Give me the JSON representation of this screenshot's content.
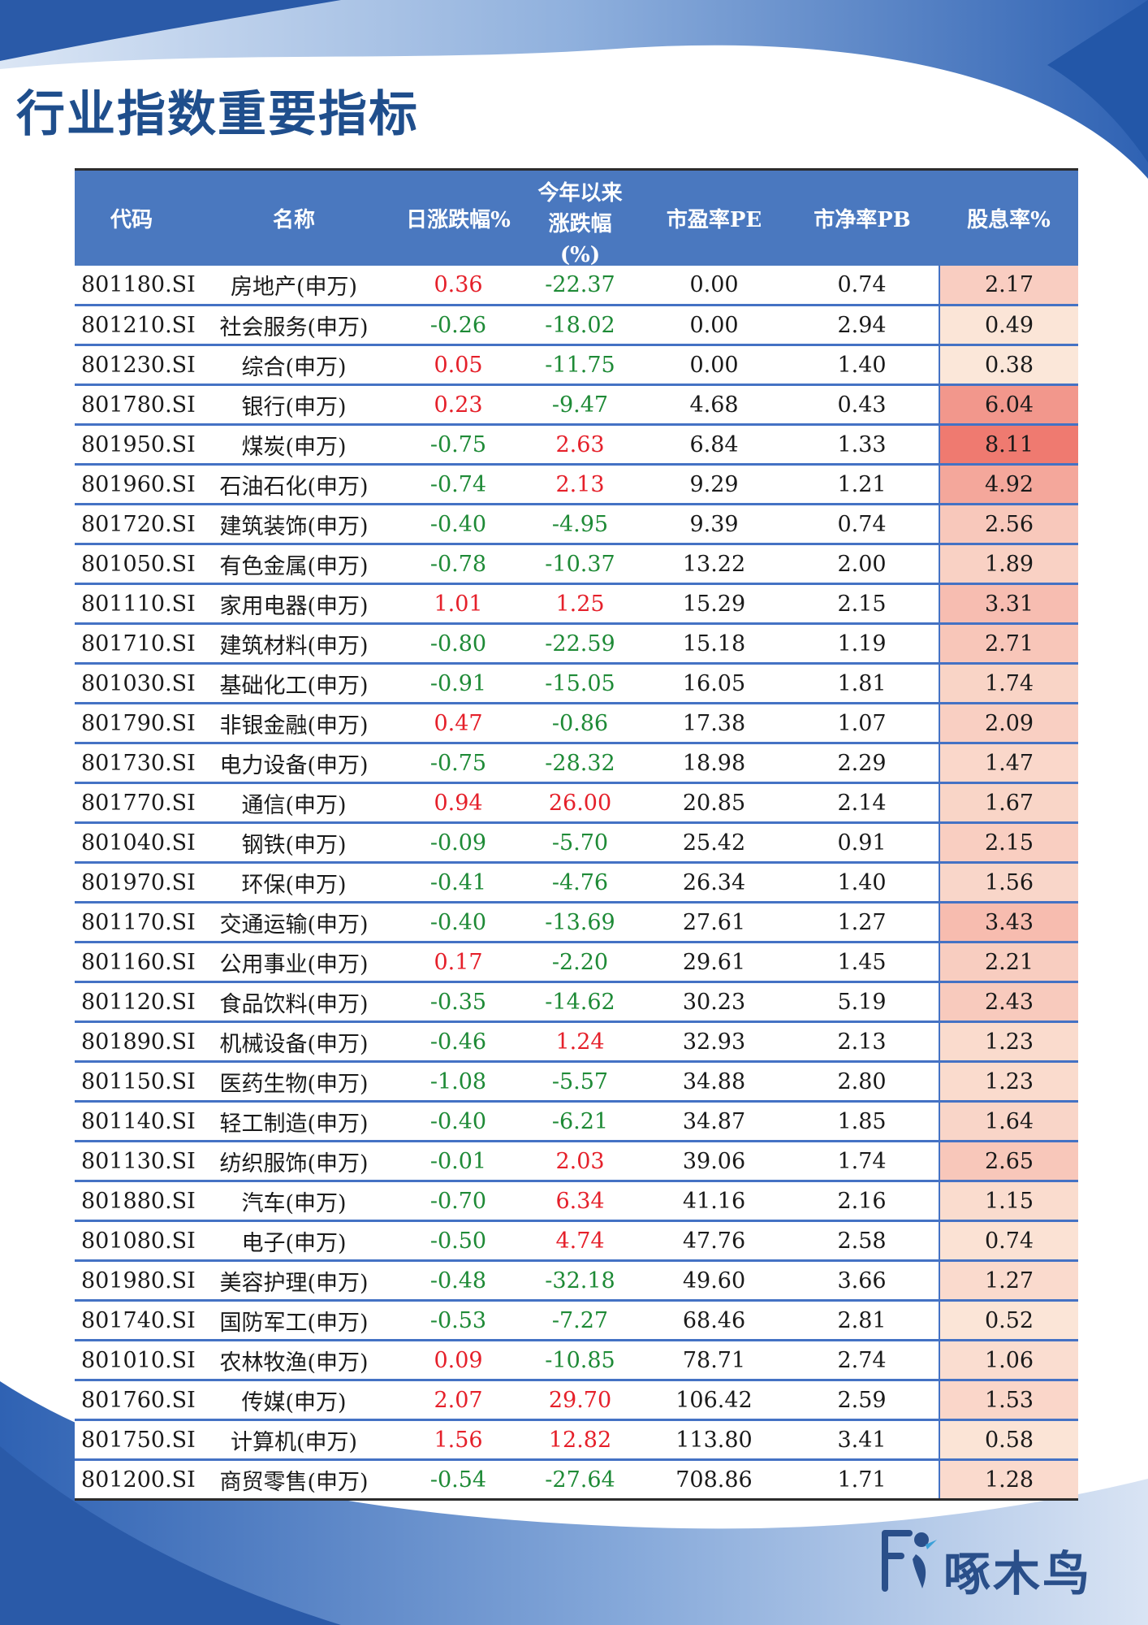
{
  "page": {
    "title": "行业指数重要指标"
  },
  "colors": {
    "header_bg": "#4a78bf",
    "rise": "#e5202a",
    "fall": "#1e8a36",
    "row_rule": "#4472c4",
    "brand": "#2a4f8a"
  },
  "table": {
    "headers": {
      "code": "代码",
      "name": "名称",
      "daily": "日涨跌幅%",
      "ytd_line1": "今年以来",
      "ytd_line2": "涨跌幅",
      "ytd_line3": "(%)",
      "pe": "市盈率PE",
      "pb": "市净率PB",
      "dividend": "股息率%"
    },
    "rows": [
      {
        "code": "801180.SI",
        "name": "房地产(申万)",
        "daily": "0.36",
        "ytd": "-22.37",
        "pe": "0.00",
        "pb": "0.74",
        "dividend": "2.17",
        "dy": 2.17
      },
      {
        "code": "801210.SI",
        "name": "社会服务(申万)",
        "daily": "-0.26",
        "ytd": "-18.02",
        "pe": "0.00",
        "pb": "2.94",
        "dividend": "0.49",
        "dy": 0.49
      },
      {
        "code": "801230.SI",
        "name": "综合(申万)",
        "daily": "0.05",
        "ytd": "-11.75",
        "pe": "0.00",
        "pb": "1.40",
        "dividend": "0.38",
        "dy": 0.38
      },
      {
        "code": "801780.SI",
        "name": "银行(申万)",
        "daily": "0.23",
        "ytd": "-9.47",
        "pe": "4.68",
        "pb": "0.43",
        "dividend": "6.04",
        "dy": 6.04
      },
      {
        "code": "801950.SI",
        "name": "煤炭(申万)",
        "daily": "-0.75",
        "ytd": "2.63",
        "pe": "6.84",
        "pb": "1.33",
        "dividend": "8.11",
        "dy": 8.11
      },
      {
        "code": "801960.SI",
        "name": "石油石化(申万)",
        "daily": "-0.74",
        "ytd": "2.13",
        "pe": "9.29",
        "pb": "1.21",
        "dividend": "4.92",
        "dy": 4.92
      },
      {
        "code": "801720.SI",
        "name": "建筑装饰(申万)",
        "daily": "-0.40",
        "ytd": "-4.95",
        "pe": "9.39",
        "pb": "0.74",
        "dividend": "2.56",
        "dy": 2.56
      },
      {
        "code": "801050.SI",
        "name": "有色金属(申万)",
        "daily": "-0.78",
        "ytd": "-10.37",
        "pe": "13.22",
        "pb": "2.00",
        "dividend": "1.89",
        "dy": 1.89
      },
      {
        "code": "801110.SI",
        "name": "家用电器(申万)",
        "daily": "1.01",
        "ytd": "1.25",
        "pe": "15.29",
        "pb": "2.15",
        "dividend": "3.31",
        "dy": 3.31
      },
      {
        "code": "801710.SI",
        "name": "建筑材料(申万)",
        "daily": "-0.80",
        "ytd": "-22.59",
        "pe": "15.18",
        "pb": "1.19",
        "dividend": "2.71",
        "dy": 2.71
      },
      {
        "code": "801030.SI",
        "name": "基础化工(申万)",
        "daily": "-0.91",
        "ytd": "-15.05",
        "pe": "16.05",
        "pb": "1.81",
        "dividend": "1.74",
        "dy": 1.74
      },
      {
        "code": "801790.SI",
        "name": "非银金融(申万)",
        "daily": "0.47",
        "ytd": "-0.86",
        "pe": "17.38",
        "pb": "1.07",
        "dividend": "2.09",
        "dy": 2.09
      },
      {
        "code": "801730.SI",
        "name": "电力设备(申万)",
        "daily": "-0.75",
        "ytd": "-28.32",
        "pe": "18.98",
        "pb": "2.29",
        "dividend": "1.47",
        "dy": 1.47
      },
      {
        "code": "801770.SI",
        "name": "通信(申万)",
        "daily": "0.94",
        "ytd": "26.00",
        "pe": "20.85",
        "pb": "2.14",
        "dividend": "1.67",
        "dy": 1.67
      },
      {
        "code": "801040.SI",
        "name": "钢铁(申万)",
        "daily": "-0.09",
        "ytd": "-5.70",
        "pe": "25.42",
        "pb": "0.91",
        "dividend": "2.15",
        "dy": 2.15
      },
      {
        "code": "801970.SI",
        "name": "环保(申万)",
        "daily": "-0.41",
        "ytd": "-4.76",
        "pe": "26.34",
        "pb": "1.40",
        "dividend": "1.56",
        "dy": 1.56
      },
      {
        "code": "801170.SI",
        "name": "交通运输(申万)",
        "daily": "-0.40",
        "ytd": "-13.69",
        "pe": "27.61",
        "pb": "1.27",
        "dividend": "3.43",
        "dy": 3.43
      },
      {
        "code": "801160.SI",
        "name": "公用事业(申万)",
        "daily": "0.17",
        "ytd": "-2.20",
        "pe": "29.61",
        "pb": "1.45",
        "dividend": "2.21",
        "dy": 2.21
      },
      {
        "code": "801120.SI",
        "name": "食品饮料(申万)",
        "daily": "-0.35",
        "ytd": "-14.62",
        "pe": "30.23",
        "pb": "5.19",
        "dividend": "2.43",
        "dy": 2.43
      },
      {
        "code": "801890.SI",
        "name": "机械设备(申万)",
        "daily": "-0.46",
        "ytd": "1.24",
        "pe": "32.93",
        "pb": "2.13",
        "dividend": "1.23",
        "dy": 1.23
      },
      {
        "code": "801150.SI",
        "name": "医药生物(申万)",
        "daily": "-1.08",
        "ytd": "-5.57",
        "pe": "34.88",
        "pb": "2.80",
        "dividend": "1.23",
        "dy": 1.23
      },
      {
        "code": "801140.SI",
        "name": "轻工制造(申万)",
        "daily": "-0.40",
        "ytd": "-6.21",
        "pe": "34.87",
        "pb": "1.85",
        "dividend": "1.64",
        "dy": 1.64
      },
      {
        "code": "801130.SI",
        "name": "纺织服饰(申万)",
        "daily": "-0.01",
        "ytd": "2.03",
        "pe": "39.06",
        "pb": "1.74",
        "dividend": "2.65",
        "dy": 2.65
      },
      {
        "code": "801880.SI",
        "name": "汽车(申万)",
        "daily": "-0.70",
        "ytd": "6.34",
        "pe": "41.16",
        "pb": "2.16",
        "dividend": "1.15",
        "dy": 1.15
      },
      {
        "code": "801080.SI",
        "name": "电子(申万)",
        "daily": "-0.50",
        "ytd": "4.74",
        "pe": "47.76",
        "pb": "2.58",
        "dividend": "0.74",
        "dy": 0.74
      },
      {
        "code": "801980.SI",
        "name": "美容护理(申万)",
        "daily": "-0.48",
        "ytd": "-32.18",
        "pe": "49.60",
        "pb": "3.66",
        "dividend": "1.27",
        "dy": 1.27
      },
      {
        "code": "801740.SI",
        "name": "国防军工(申万)",
        "daily": "-0.53",
        "ytd": "-7.27",
        "pe": "68.46",
        "pb": "2.81",
        "dividend": "0.52",
        "dy": 0.52
      },
      {
        "code": "801010.SI",
        "name": "农林牧渔(申万)",
        "daily": "0.09",
        "ytd": "-10.85",
        "pe": "78.71",
        "pb": "2.74",
        "dividend": "1.06",
        "dy": 1.06
      },
      {
        "code": "801760.SI",
        "name": "传媒(申万)",
        "daily": "2.07",
        "ytd": "29.70",
        "pe": "106.42",
        "pb": "2.59",
        "dividend": "1.53",
        "dy": 1.53
      },
      {
        "code": "801750.SI",
        "name": "计算机(申万)",
        "daily": "1.56",
        "ytd": "12.82",
        "pe": "113.80",
        "pb": "3.41",
        "dividend": "0.58",
        "dy": 0.58
      },
      {
        "code": "801200.SI",
        "name": "商贸零售(申万)",
        "daily": "-0.54",
        "ytd": "-27.64",
        "pe": "708.86",
        "pb": "1.71",
        "dividend": "1.28",
        "dy": 1.28
      }
    ]
  },
  "logo": {
    "text": "啄木鸟",
    "icon": "woodpecker-logo-icon"
  }
}
